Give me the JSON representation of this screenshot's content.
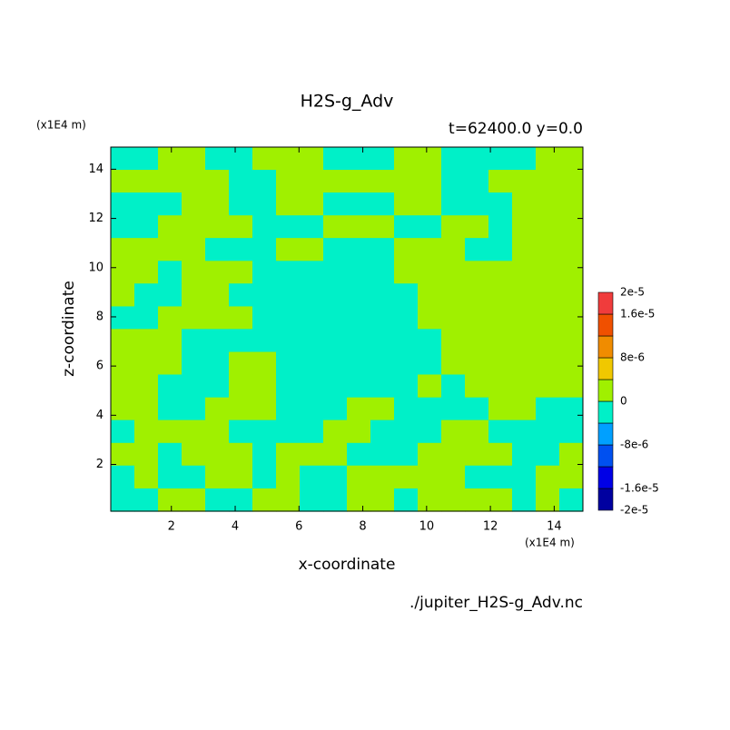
{
  "chart_data": {
    "type": "contour",
    "title": "H2S-g_Adv",
    "subtitle": "t=62400.0 y=0.0",
    "x_unit": "(x1E4 m)",
    "y_unit": "(x1E4 m)",
    "xlabel": "x-coordinate",
    "ylabel": "z-coordinate",
    "footer": "./jupiter_H2S-g_Adv.nc",
    "xlim": [
      0.1,
      14.9
    ],
    "ylim": [
      0.1,
      14.9
    ],
    "xticks": [
      2,
      4,
      6,
      8,
      10,
      12,
      14
    ],
    "yticks": [
      2,
      4,
      6,
      8,
      10,
      12,
      14
    ],
    "x": [
      0.47,
      1.21,
      1.95,
      2.69,
      3.43,
      4.17,
      4.91,
      5.65,
      6.39,
      7.13,
      7.87,
      8.61,
      9.35,
      10.09,
      10.83,
      11.57,
      12.31,
      13.05,
      13.79,
      14.53
    ],
    "y": [
      14.44,
      13.51,
      12.59,
      11.66,
      10.74,
      9.81,
      8.89,
      7.96,
      7.04,
      6.11,
      5.19,
      4.26,
      3.34,
      2.41,
      1.49,
      0.56
    ],
    "z": [
      [
        -2e-06,
        -2e-06,
        2e-06,
        2e-06,
        -2e-06,
        -2e-06,
        2e-06,
        2e-06,
        2e-06,
        -2e-06,
        -2e-06,
        -2e-06,
        2e-06,
        2e-06,
        -2e-06,
        -2e-06,
        -2e-06,
        -2e-06,
        2e-06,
        2e-06
      ],
      [
        2e-06,
        2e-06,
        2e-06,
        2e-06,
        2e-06,
        -2e-06,
        -2e-06,
        2e-06,
        2e-06,
        2e-06,
        2e-06,
        2e-06,
        2e-06,
        2e-06,
        -2e-06,
        -2e-06,
        2e-06,
        2e-06,
        2e-06,
        2e-06
      ],
      [
        -2e-06,
        -2e-06,
        -2e-06,
        2e-06,
        2e-06,
        -2e-06,
        -2e-06,
        2e-06,
        2e-06,
        -2e-06,
        -2e-06,
        -2e-06,
        2e-06,
        2e-06,
        -2e-06,
        -2e-06,
        -2e-06,
        2e-06,
        2e-06,
        2e-06
      ],
      [
        -2e-06,
        -2e-06,
        2e-06,
        2e-06,
        2e-06,
        2e-06,
        -2e-06,
        -2e-06,
        -2e-06,
        2e-06,
        2e-06,
        2e-06,
        -2e-06,
        -2e-06,
        2e-06,
        2e-06,
        -2e-06,
        2e-06,
        2e-06,
        2e-06
      ],
      [
        2e-06,
        2e-06,
        2e-06,
        2e-06,
        -2e-06,
        -2e-06,
        -2e-06,
        2e-06,
        2e-06,
        -2e-06,
        -2e-06,
        -2e-06,
        2e-06,
        2e-06,
        2e-06,
        -2e-06,
        -2e-06,
        2e-06,
        2e-06,
        2e-06
      ],
      [
        2e-06,
        2e-06,
        -2e-06,
        2e-06,
        2e-06,
        2e-06,
        -2e-06,
        -2e-06,
        -2e-06,
        -2e-06,
        -2e-06,
        -2e-06,
        2e-06,
        2e-06,
        2e-06,
        2e-06,
        2e-06,
        2e-06,
        2e-06,
        2e-06
      ],
      [
        2e-06,
        -2e-06,
        -2e-06,
        2e-06,
        2e-06,
        -2e-06,
        -2e-06,
        -2e-06,
        -2e-06,
        -2e-06,
        -2e-06,
        -2e-06,
        -2e-06,
        2e-06,
        2e-06,
        2e-06,
        2e-06,
        2e-06,
        2e-06,
        2e-06
      ],
      [
        -2e-06,
        -2e-06,
        2e-06,
        2e-06,
        2e-06,
        2e-06,
        -2e-06,
        -2e-06,
        -2e-06,
        -2e-06,
        -2e-06,
        -2e-06,
        -2e-06,
        2e-06,
        2e-06,
        2e-06,
        2e-06,
        2e-06,
        2e-06,
        2e-06
      ],
      [
        2e-06,
        2e-06,
        2e-06,
        -2e-06,
        -2e-06,
        -2e-06,
        -2e-06,
        -2e-06,
        -2e-06,
        -2e-06,
        -2e-06,
        -2e-06,
        -2e-06,
        -2e-06,
        2e-06,
        2e-06,
        2e-06,
        2e-06,
        2e-06,
        2e-06
      ],
      [
        2e-06,
        2e-06,
        2e-06,
        -2e-06,
        -2e-06,
        2e-06,
        2e-06,
        -2e-06,
        -2e-06,
        -2e-06,
        -2e-06,
        -2e-06,
        -2e-06,
        -2e-06,
        2e-06,
        2e-06,
        2e-06,
        2e-06,
        2e-06,
        2e-06
      ],
      [
        2e-06,
        2e-06,
        -2e-06,
        -2e-06,
        -2e-06,
        2e-06,
        2e-06,
        -2e-06,
        -2e-06,
        -2e-06,
        -2e-06,
        -2e-06,
        -2e-06,
        2e-06,
        -2e-06,
        2e-06,
        2e-06,
        2e-06,
        2e-06,
        2e-06
      ],
      [
        2e-06,
        2e-06,
        -2e-06,
        -2e-06,
        2e-06,
        2e-06,
        2e-06,
        -2e-06,
        -2e-06,
        -2e-06,
        2e-06,
        2e-06,
        -2e-06,
        -2e-06,
        -2e-06,
        -2e-06,
        2e-06,
        2e-06,
        -2e-06,
        -2e-06
      ],
      [
        -2e-06,
        2e-06,
        2e-06,
        2e-06,
        2e-06,
        -2e-06,
        -2e-06,
        -2e-06,
        -2e-06,
        2e-06,
        2e-06,
        -2e-06,
        -2e-06,
        -2e-06,
        2e-06,
        2e-06,
        -2e-06,
        -2e-06,
        -2e-06,
        -2e-06
      ],
      [
        2e-06,
        2e-06,
        -2e-06,
        2e-06,
        2e-06,
        2e-06,
        -2e-06,
        2e-06,
        2e-06,
        2e-06,
        -2e-06,
        -2e-06,
        -2e-06,
        2e-06,
        2e-06,
        2e-06,
        2e-06,
        -2e-06,
        -2e-06,
        2e-06
      ],
      [
        -2e-06,
        2e-06,
        -2e-06,
        -2e-06,
        2e-06,
        2e-06,
        -2e-06,
        2e-06,
        -2e-06,
        -2e-06,
        2e-06,
        2e-06,
        2e-06,
        2e-06,
        2e-06,
        -2e-06,
        -2e-06,
        -2e-06,
        2e-06,
        2e-06
      ],
      [
        -2e-06,
        -2e-06,
        2e-06,
        2e-06,
        -2e-06,
        -2e-06,
        2e-06,
        2e-06,
        -2e-06,
        -2e-06,
        2e-06,
        2e-06,
        -2e-06,
        2e-06,
        2e-06,
        2e-06,
        2e-06,
        -2e-06,
        2e-06,
        -2e-06
      ]
    ],
    "levels": [
      -2e-05,
      -1.6e-05,
      -1.2e-05,
      -8e-06,
      -4e-06,
      0,
      4e-06,
      8e-06,
      1.2e-05,
      1.6e-05,
      2e-05
    ],
    "colors": [
      "#0000a0",
      "#0000e6",
      "#0050f0",
      "#00a0ff",
      "#00f0c8",
      "#a0f000",
      "#f0c800",
      "#f08c00",
      "#f05000",
      "#f03c3c"
    ],
    "colorbar_ticks": [
      {
        "value": 2e-05,
        "label": "2e-5"
      },
      {
        "value": 1.6e-05,
        "label": "1.6e-5"
      },
      {
        "value": 8e-06,
        "label": "8e-6"
      },
      0,
      {
        "value": -8e-06,
        "label": "-8e-6"
      },
      {
        "value": -1.6e-05,
        "label": "-1.6e-5"
      },
      {
        "value": -2e-05,
        "label": "-2e-5"
      }
    ]
  }
}
